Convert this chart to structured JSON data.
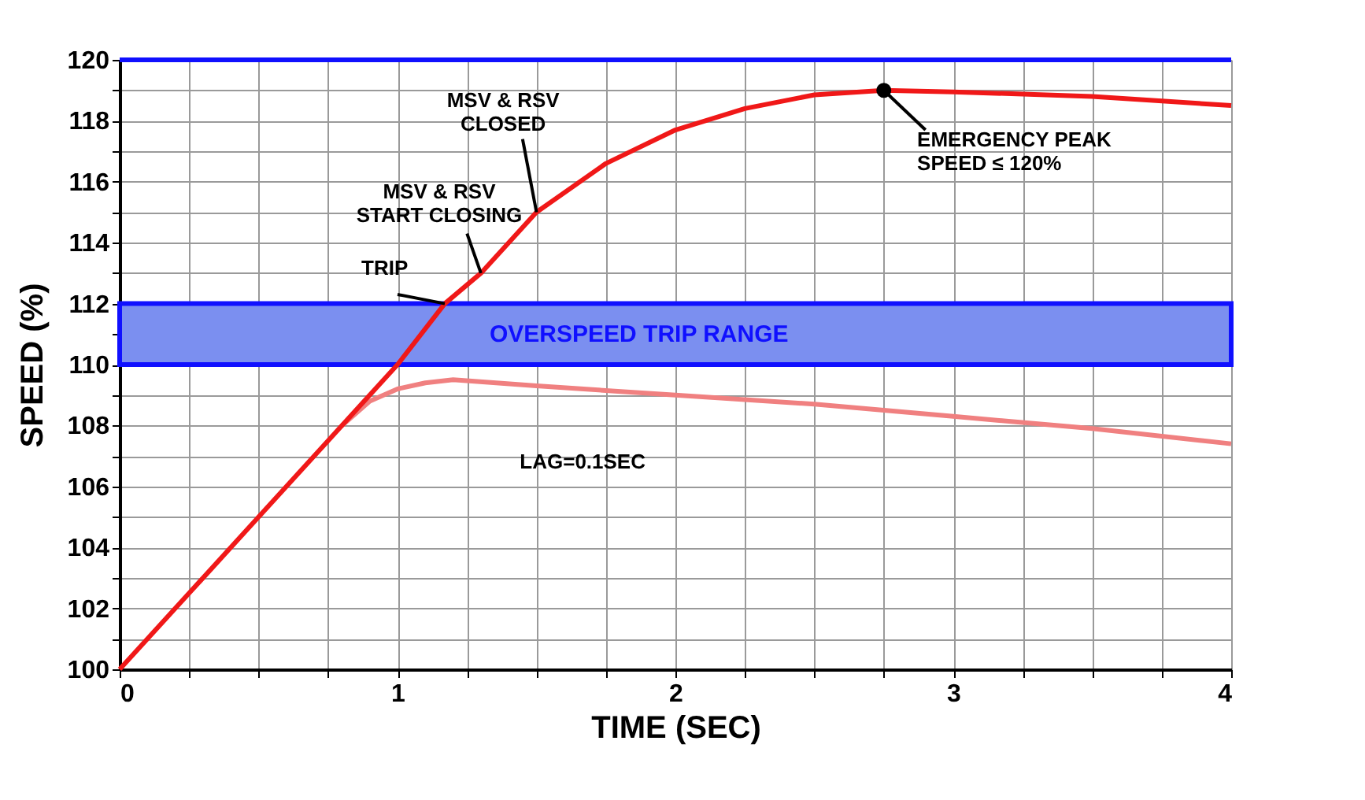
{
  "chart_data": {
    "type": "line",
    "xlabel": "TIME (SEC)",
    "ylabel": "SPEED (%)",
    "xlim": [
      0,
      4
    ],
    "ylim": [
      100,
      120
    ],
    "xticks": [
      0,
      {
        "value": 0.25,
        "label": null
      },
      {
        "value": 0.5,
        "label": null
      },
      {
        "value": 0.75,
        "label": null
      },
      1,
      {
        "value": 1.25,
        "label": null
      },
      {
        "value": 1.5,
        "label": null
      },
      {
        "value": 1.75,
        "label": null
      },
      2,
      {
        "value": 2.25,
        "label": null
      },
      {
        "value": 2.5,
        "label": null
      },
      {
        "value": 2.75,
        "label": null
      },
      3,
      {
        "value": 3.25,
        "label": null
      },
      {
        "value": 3.5,
        "label": null
      },
      {
        "value": 3.75,
        "label": null
      },
      4
    ],
    "yticks": [
      100,
      {
        "value": 101,
        "label": null
      },
      102,
      {
        "value": 103,
        "label": null
      },
      104,
      {
        "value": 105,
        "label": null
      },
      106,
      {
        "value": 107,
        "label": null
      },
      108,
      {
        "value": 109,
        "label": null
      },
      110,
      {
        "value": 111,
        "label": null
      },
      112,
      {
        "value": 113,
        "label": null
      },
      114,
      {
        "value": 115,
        "label": null
      },
      116,
      {
        "value": 117,
        "label": null
      },
      118,
      {
        "value": 119,
        "label": null
      },
      120
    ],
    "grid": true,
    "marker": "none",
    "line_style": "solid",
    "series": [
      {
        "color": "#f08080",
        "x": [
          0.8,
          0.9,
          1.0,
          1.1,
          1.2,
          1.5,
          2.0,
          2.5,
          3.0,
          3.5,
          4.0
        ],
        "values": [
          108.0,
          108.8,
          109.2,
          109.4,
          109.5,
          109.3,
          109.0,
          108.7,
          108.3,
          107.9,
          107.4
        ]
      },
      {
        "color": "#f01818",
        "x": [
          0,
          0.25,
          0.5,
          0.75,
          1.0,
          1.17,
          1.3,
          1.5,
          1.75,
          2.0,
          2.25,
          2.5,
          2.75,
          3.0,
          3.5,
          4.0
        ],
        "values": [
          100,
          102.5,
          105,
          107.5,
          110,
          112,
          113,
          115,
          116.6,
          117.7,
          118.4,
          118.85,
          119,
          118.95,
          118.8,
          118.5
        ]
      }
    ],
    "bands": [
      {
        "axis": "y",
        "from": 110,
        "to": 112,
        "label": "OVERSPEED TRIP RANGE",
        "color": "#7b8ff0"
      }
    ],
    "ref_lines": [
      {
        "axis": "y",
        "value": 120,
        "color": "#1010ff"
      }
    ],
    "annotations": [
      {
        "text": "MSV & RSV\nCLOSED",
        "x": 1.5,
        "y": 115
      },
      {
        "text": "MSV & RSV\nSTART CLOSING",
        "x": 1.3,
        "y": 113
      },
      {
        "text": "TRIP",
        "x": 1.17,
        "y": 112
      },
      {
        "text": "EMERGENCY PEAK\nSPEED ≤ 120%",
        "x": 2.75,
        "y": 119
      },
      "LAG=0.1SEC"
    ]
  }
}
